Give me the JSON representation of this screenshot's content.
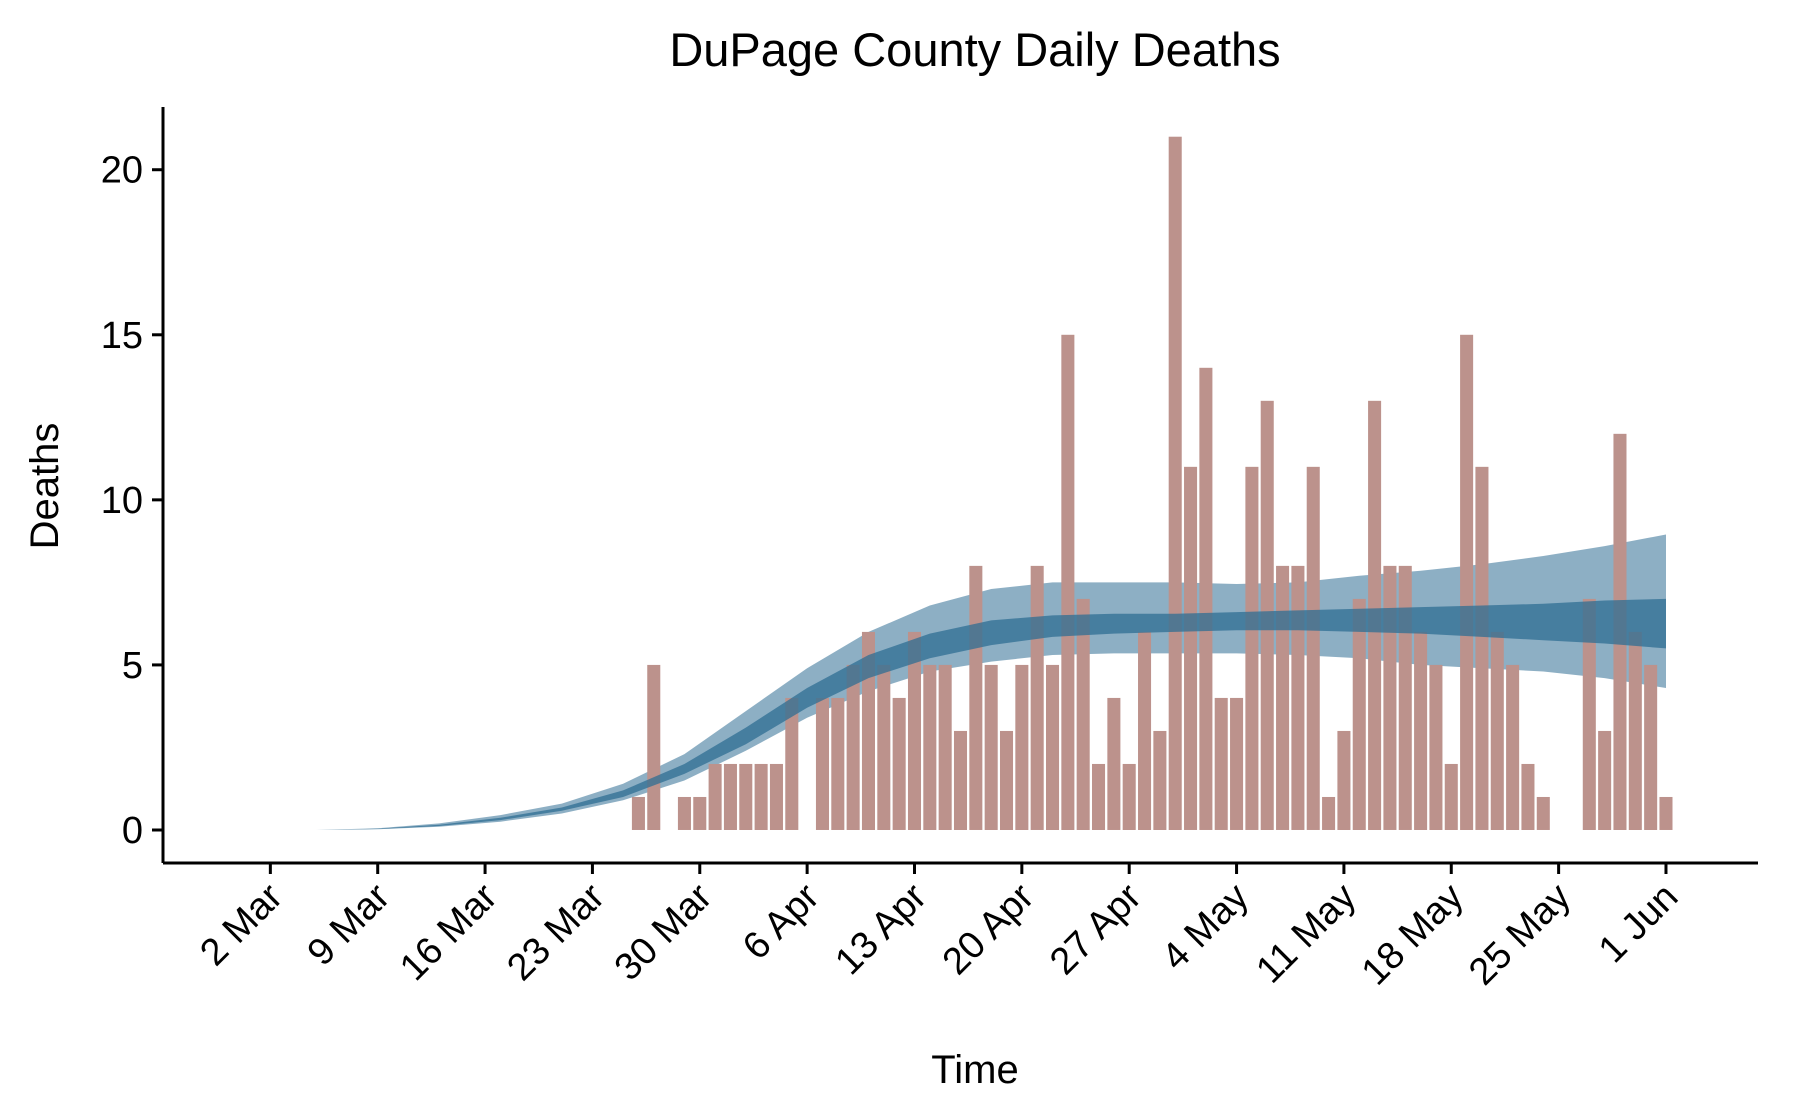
{
  "chart_data": {
    "type": "bar",
    "title": "DuPage County Daily Deaths",
    "xlabel": "Time",
    "ylabel": "Deaths",
    "ylim": [
      -1.0,
      21.9
    ],
    "xlim": [
      "2020-02-24",
      "2020-06-07"
    ],
    "grid": false,
    "legend": "none",
    "x_ticks": [
      "2 Mar",
      "9 Mar",
      "16 Mar",
      "23 Mar",
      "30 Mar",
      "6 Apr",
      "13 Apr",
      "20 Apr",
      "27 Apr",
      "4 May",
      "11 May",
      "18 May",
      "25 May",
      "1 Jun"
    ],
    "x_tick_dates": [
      "2020-03-02",
      "2020-03-09",
      "2020-03-16",
      "2020-03-23",
      "2020-03-30",
      "2020-04-06",
      "2020-04-13",
      "2020-04-20",
      "2020-04-27",
      "2020-05-04",
      "2020-05-11",
      "2020-05-18",
      "2020-05-25",
      "2020-06-01"
    ],
    "y_ticks": [
      0,
      5,
      10,
      15,
      20
    ],
    "bar_color": "#bc928c",
    "band_color": "#2f6d93",
    "bars": [
      {
        "date": "2020-03-26",
        "value": 1
      },
      {
        "date": "2020-03-27",
        "value": 5
      },
      {
        "date": "2020-03-29",
        "value": 1
      },
      {
        "date": "2020-03-30",
        "value": 1
      },
      {
        "date": "2020-03-31",
        "value": 2
      },
      {
        "date": "2020-04-01",
        "value": 2
      },
      {
        "date": "2020-04-02",
        "value": 2
      },
      {
        "date": "2020-04-03",
        "value": 2
      },
      {
        "date": "2020-04-04",
        "value": 2
      },
      {
        "date": "2020-04-05",
        "value": 4
      },
      {
        "date": "2020-04-07",
        "value": 4
      },
      {
        "date": "2020-04-08",
        "value": 4
      },
      {
        "date": "2020-04-09",
        "value": 5
      },
      {
        "date": "2020-04-10",
        "value": 6
      },
      {
        "date": "2020-04-11",
        "value": 5
      },
      {
        "date": "2020-04-12",
        "value": 4
      },
      {
        "date": "2020-04-13",
        "value": 6
      },
      {
        "date": "2020-04-14",
        "value": 5
      },
      {
        "date": "2020-04-15",
        "value": 5
      },
      {
        "date": "2020-04-16",
        "value": 3
      },
      {
        "date": "2020-04-17",
        "value": 8
      },
      {
        "date": "2020-04-18",
        "value": 5
      },
      {
        "date": "2020-04-19",
        "value": 3
      },
      {
        "date": "2020-04-20",
        "value": 5
      },
      {
        "date": "2020-04-21",
        "value": 8
      },
      {
        "date": "2020-04-22",
        "value": 5
      },
      {
        "date": "2020-04-23",
        "value": 15
      },
      {
        "date": "2020-04-24",
        "value": 7
      },
      {
        "date": "2020-04-25",
        "value": 2
      },
      {
        "date": "2020-04-26",
        "value": 4
      },
      {
        "date": "2020-04-27",
        "value": 2
      },
      {
        "date": "2020-04-28",
        "value": 6
      },
      {
        "date": "2020-04-29",
        "value": 3
      },
      {
        "date": "2020-04-30",
        "value": 21
      },
      {
        "date": "2020-05-01",
        "value": 11
      },
      {
        "date": "2020-05-02",
        "value": 14
      },
      {
        "date": "2020-05-03",
        "value": 4
      },
      {
        "date": "2020-05-04",
        "value": 4
      },
      {
        "date": "2020-05-05",
        "value": 11
      },
      {
        "date": "2020-05-06",
        "value": 13
      },
      {
        "date": "2020-05-07",
        "value": 8
      },
      {
        "date": "2020-05-08",
        "value": 8
      },
      {
        "date": "2020-05-09",
        "value": 11
      },
      {
        "date": "2020-05-10",
        "value": 1
      },
      {
        "date": "2020-05-11",
        "value": 3
      },
      {
        "date": "2020-05-12",
        "value": 7
      },
      {
        "date": "2020-05-13",
        "value": 13
      },
      {
        "date": "2020-05-14",
        "value": 8
      },
      {
        "date": "2020-05-15",
        "value": 8
      },
      {
        "date": "2020-05-16",
        "value": 6
      },
      {
        "date": "2020-05-17",
        "value": 5
      },
      {
        "date": "2020-05-18",
        "value": 2
      },
      {
        "date": "2020-05-19",
        "value": 15
      },
      {
        "date": "2020-05-20",
        "value": 11
      },
      {
        "date": "2020-05-21",
        "value": 6
      },
      {
        "date": "2020-05-22",
        "value": 5
      },
      {
        "date": "2020-05-23",
        "value": 2
      },
      {
        "date": "2020-05-24",
        "value": 1
      },
      {
        "date": "2020-05-27",
        "value": 7
      },
      {
        "date": "2020-05-28",
        "value": 3
      },
      {
        "date": "2020-05-29",
        "value": 12
      },
      {
        "date": "2020-05-30",
        "value": 6
      },
      {
        "date": "2020-05-31",
        "value": 5
      },
      {
        "date": "2020-06-01",
        "value": 1
      }
    ],
    "outer_band": {
      "x": [
        "2020-03-05",
        "2020-03-09",
        "2020-03-13",
        "2020-03-17",
        "2020-03-21",
        "2020-03-25",
        "2020-03-29",
        "2020-04-02",
        "2020-04-06",
        "2020-04-10",
        "2020-04-14",
        "2020-04-18",
        "2020-04-22",
        "2020-04-26",
        "2020-04-30",
        "2020-05-04",
        "2020-05-08",
        "2020-05-12",
        "2020-05-16",
        "2020-05-20",
        "2020-05-24",
        "2020-05-28",
        "2020-06-01"
      ],
      "upper": [
        0,
        0.05,
        0.2,
        0.45,
        0.8,
        1.4,
        2.3,
        3.6,
        4.9,
        6.0,
        6.8,
        7.3,
        7.5,
        7.5,
        7.5,
        7.45,
        7.5,
        7.7,
        7.85,
        8.05,
        8.3,
        8.6,
        8.95
      ],
      "lower": [
        0,
        0.02,
        0.1,
        0.25,
        0.5,
        0.9,
        1.5,
        2.4,
        3.4,
        4.2,
        4.8,
        5.1,
        5.3,
        5.35,
        5.35,
        5.35,
        5.3,
        5.2,
        5.0,
        4.9,
        4.8,
        4.6,
        4.3
      ]
    },
    "inner_band": {
      "x": [
        "2020-03-05",
        "2020-03-09",
        "2020-03-13",
        "2020-03-17",
        "2020-03-21",
        "2020-03-25",
        "2020-03-29",
        "2020-04-02",
        "2020-04-06",
        "2020-04-10",
        "2020-04-14",
        "2020-04-18",
        "2020-04-22",
        "2020-04-26",
        "2020-04-30",
        "2020-05-04",
        "2020-05-08",
        "2020-05-12",
        "2020-05-16",
        "2020-05-20",
        "2020-05-24",
        "2020-05-28",
        "2020-06-01"
      ],
      "upper": [
        0,
        0.04,
        0.16,
        0.37,
        0.68,
        1.2,
        2.0,
        3.1,
        4.3,
        5.3,
        5.95,
        6.35,
        6.5,
        6.55,
        6.55,
        6.6,
        6.65,
        6.7,
        6.75,
        6.8,
        6.85,
        6.95,
        7.0
      ],
      "lower": [
        0,
        0.03,
        0.12,
        0.3,
        0.58,
        1.0,
        1.7,
        2.6,
        3.7,
        4.6,
        5.2,
        5.6,
        5.85,
        5.95,
        6.0,
        6.05,
        6.05,
        6.0,
        5.95,
        5.85,
        5.75,
        5.65,
        5.5
      ]
    }
  }
}
